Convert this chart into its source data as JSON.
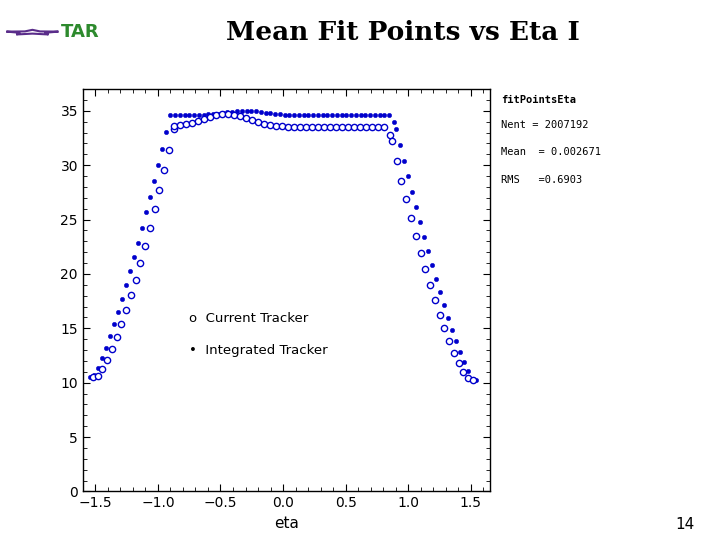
{
  "title": "Mean Fit Points vs Eta I",
  "xlabel": "eta",
  "xlim": [
    -1.6,
    1.65
  ],
  "ylim": [
    0,
    37
  ],
  "yticks": [
    0,
    5,
    10,
    15,
    20,
    25,
    30,
    35
  ],
  "xticks": [
    -1.5,
    -1.0,
    -0.5,
    0.0,
    0.5,
    1.0,
    1.5
  ],
  "stats_box": {
    "title": "fitPointsEta",
    "nent": "Nent = 2007192",
    "mean": "Mean  = 0.002671",
    "rms": "RMS   =0.6903"
  },
  "marker_color": "#0000CC",
  "background_color": "#ffffff",
  "page_number": "14",
  "stripe_green": "#2d6a2d",
  "stripe_purple": "#6a2d6a",
  "star_green": "#2d8a2d",
  "star_purple": "#5a2d8a"
}
